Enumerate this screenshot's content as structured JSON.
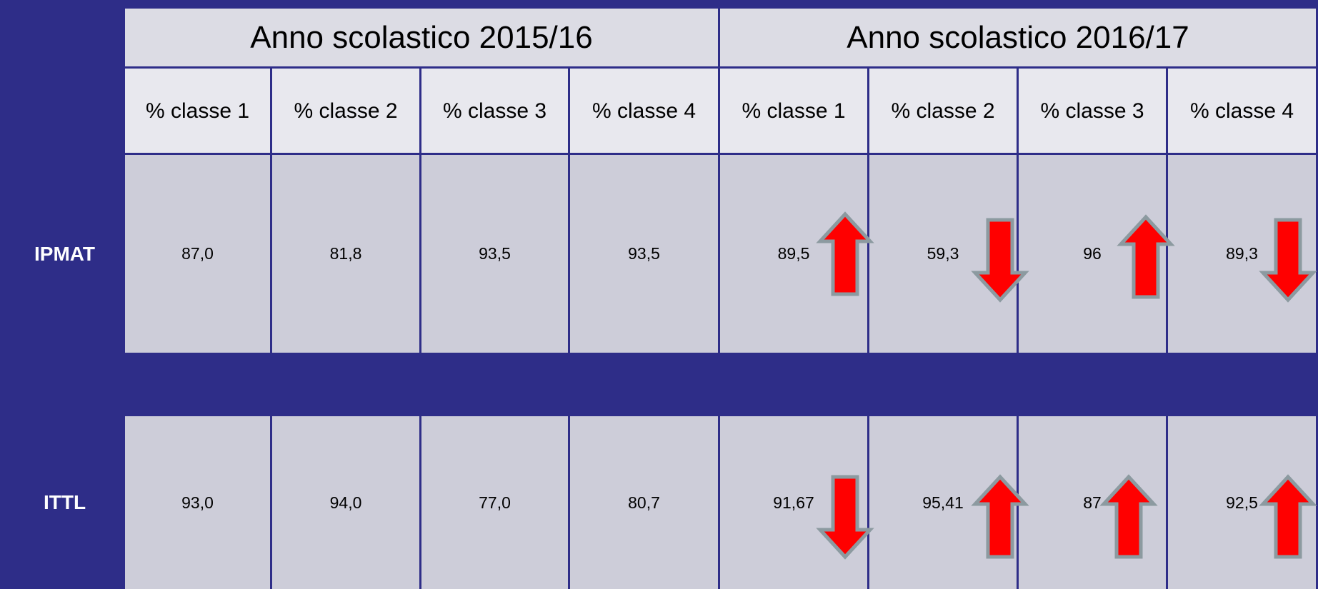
{
  "table": {
    "groups": [
      "Anno scolastico 2015/16",
      "Anno scolastico 2016/17"
    ],
    "columns": [
      "% classe 1",
      "% classe 2",
      "% classe 3",
      "% classe 4",
      "% classe 1",
      "% classe 2",
      "% classe 3",
      "% classe 4"
    ],
    "rows": [
      {
        "label": "IPMAT",
        "cells": [
          "87,0",
          "81,8",
          "93,5",
          "93,5",
          "89,5",
          "59,3",
          "96",
          "89,3"
        ]
      },
      {
        "label": "ITTL",
        "cells": [
          "93,0",
          "94,0",
          "77,0",
          "80,7",
          "91,67",
          "95,41",
          "87",
          "92,5"
        ]
      }
    ]
  }
}
